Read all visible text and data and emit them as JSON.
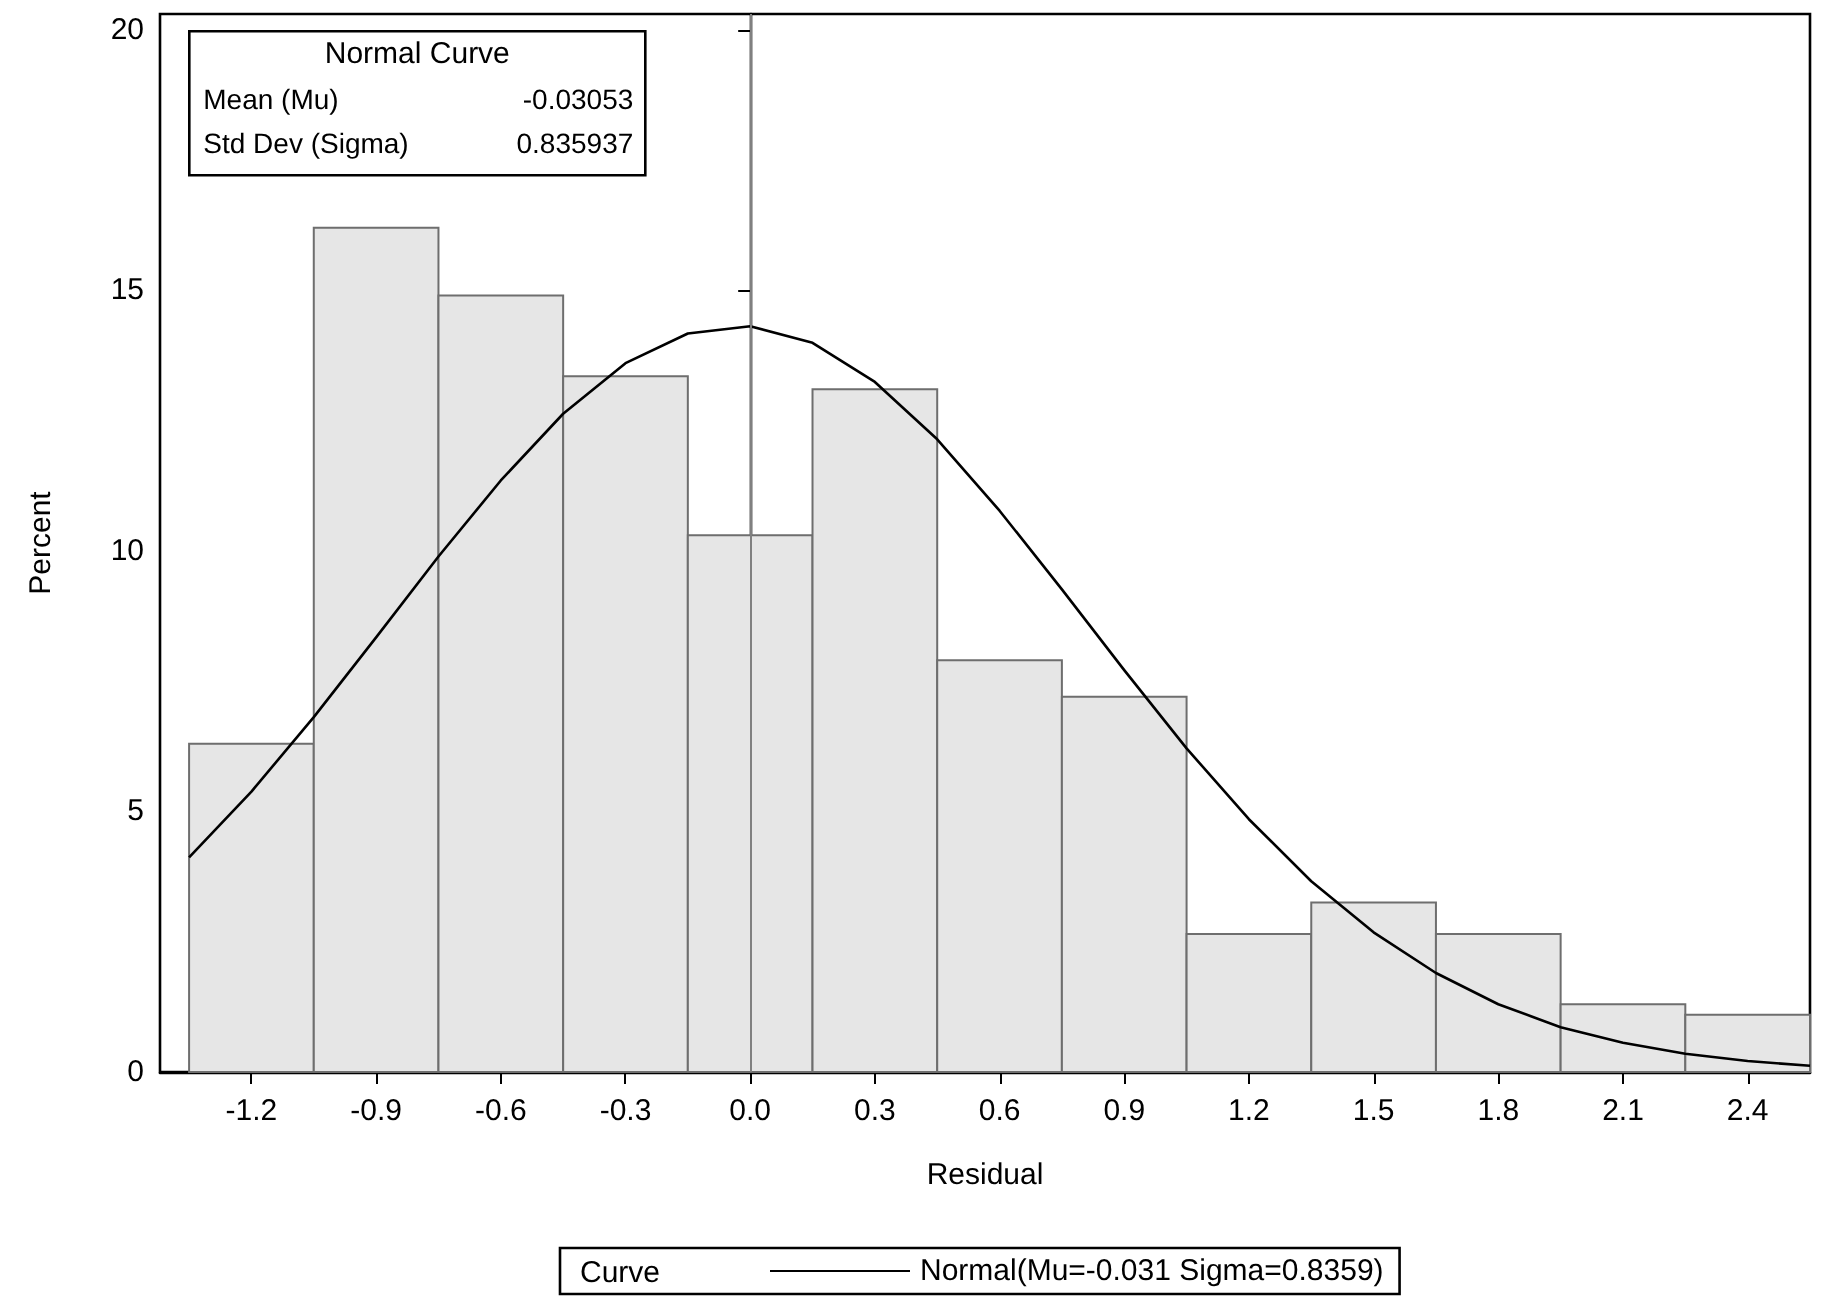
{
  "chart_data": {
    "type": "histogram",
    "xlabel": "Residual",
    "ylabel": "Percent",
    "legend_title": "Curve",
    "annotations": [
      "Normal Curve",
      "Mean (Mu)",
      "-0.03053",
      "Std Dev (Sigma)",
      "0.835937"
    ],
    "bins": [
      -1.35,
      -1.05,
      -0.75,
      -0.45,
      -0.15,
      0.15,
      0.45,
      0.75,
      1.05,
      1.35,
      1.65,
      1.95,
      2.25,
      2.55
    ],
    "values": [
      6.3,
      16.2,
      14.9,
      13.35,
      10.3,
      13.1,
      7.9,
      7.2,
      2.65,
      3.25,
      2.65,
      1.3,
      1.1
    ],
    "color": "#e6e6e6",
    "series": [
      {
        "type": "line",
        "name": "Normal(Mu=-0.031 Sigma=0.8359)",
        "color": "#000000",
        "x": [
          -1.35,
          -1.2,
          -1.05,
          -0.9,
          -0.75,
          -0.6,
          -0.45,
          -0.3,
          -0.15,
          0,
          0.15,
          0.3,
          0.45,
          0.6,
          0.75,
          0.9,
          1.05,
          1.2,
          1.35,
          1.5,
          1.65,
          1.8,
          1.95,
          2.1,
          2.25,
          2.4,
          2.55
        ],
        "values": [
          4.12,
          5.38,
          6.81,
          8.34,
          9.89,
          11.35,
          12.63,
          13.6,
          14.17,
          14.31,
          13.99,
          13.24,
          12.14,
          10.77,
          9.26,
          7.71,
          6.21,
          4.85,
          3.66,
          2.68,
          1.9,
          1.3,
          0.86,
          0.56,
          0.35,
          0.21,
          0.12
        ]
      }
    ],
    "ref_lines": [
      {
        "axis": "x",
        "value": 0,
        "color": "#808080"
      }
    ],
    "xlim": [
      -1.42,
      2.55
    ],
    "ylim": [
      0,
      20.3
    ],
    "xticks": [
      {
        "value": -1.2,
        "label": "-1.2"
      },
      {
        "value": -0.9,
        "label": "-0.9"
      },
      {
        "value": -0.6,
        "label": "-0.6"
      },
      {
        "value": -0.3,
        "label": "-0.3"
      },
      {
        "value": 0,
        "label": "0.0"
      },
      {
        "value": 0.3,
        "label": "0.3"
      },
      {
        "value": 0.6,
        "label": "0.6"
      },
      {
        "value": 0.9,
        "label": "0.9"
      },
      {
        "value": 1.2,
        "label": "1.2"
      },
      {
        "value": 1.5,
        "label": "1.5"
      },
      {
        "value": 1.8,
        "label": "1.8"
      },
      {
        "value": 2.1,
        "label": "2.1"
      },
      {
        "value": 2.4,
        "label": "2.4"
      }
    ],
    "yticks": [
      0,
      5,
      10,
      15,
      20
    ],
    "grid": false,
    "legend": "bottom"
  }
}
